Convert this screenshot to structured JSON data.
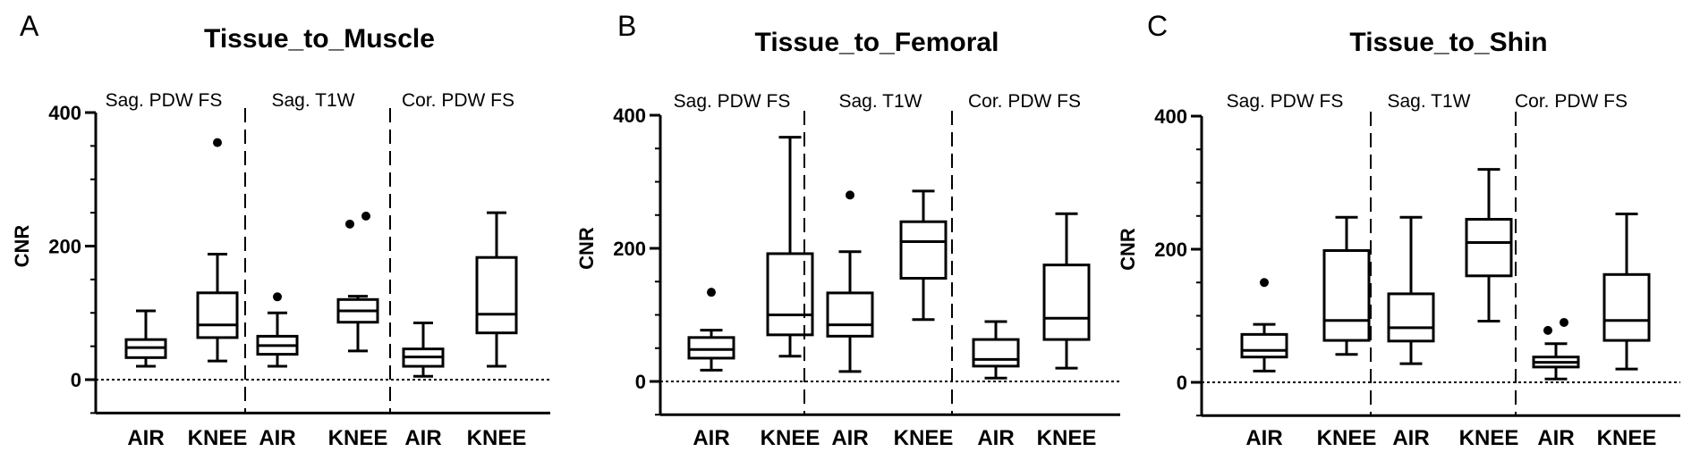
{
  "chart_data": [
    {
      "type": "boxplot",
      "panel": "A",
      "title": "Tissue_to_Muscle",
      "ylabel": "CNR",
      "ylim": [
        -50,
        400
      ],
      "yticks": [
        0,
        200,
        400
      ],
      "groups": [
        "Sag. PDW FS",
        "Sag. T1W",
        "Cor. PDW FS"
      ],
      "categories": [
        "AIR",
        "KNEE"
      ],
      "reference_line": 0,
      "boxes": [
        {
          "group": "Sag. PDW FS",
          "category": "AIR",
          "min": 20,
          "q1": 33,
          "median": 48,
          "q3": 60,
          "max": 103,
          "outliers": []
        },
        {
          "group": "Sag. PDW FS",
          "category": "KNEE",
          "min": 28,
          "q1": 63,
          "median": 82,
          "q3": 130,
          "max": 188,
          "outliers": [
            355
          ]
        },
        {
          "group": "Sag. T1W",
          "category": "AIR",
          "min": 20,
          "q1": 38,
          "median": 51,
          "q3": 65,
          "max": 100,
          "outliers": [
            124
          ]
        },
        {
          "group": "Sag. T1W",
          "category": "KNEE",
          "min": 43,
          "q1": 86,
          "median": 103,
          "q3": 120,
          "max": 125,
          "outliers": [
            233,
            245
          ]
        },
        {
          "group": "Cor. PDW FS",
          "category": "AIR",
          "min": 5,
          "q1": 20,
          "median": 34,
          "q3": 46,
          "max": 85,
          "outliers": []
        },
        {
          "group": "Cor. PDW FS",
          "category": "KNEE",
          "min": 20,
          "q1": 70,
          "median": 98,
          "q3": 183,
          "max": 250,
          "outliers": []
        }
      ]
    },
    {
      "type": "boxplot",
      "panel": "B",
      "title": "Tissue_to_Femoral",
      "ylabel": "CNR",
      "ylim": [
        -50,
        400
      ],
      "yticks": [
        0,
        200,
        400
      ],
      "groups": [
        "Sag. PDW FS",
        "Sag. T1W",
        "Cor. PDW FS"
      ],
      "categories": [
        "AIR",
        "KNEE"
      ],
      "reference_line": 0,
      "boxes": [
        {
          "group": "Sag. PDW FS",
          "category": "AIR",
          "min": 17,
          "q1": 35,
          "median": 48,
          "q3": 66,
          "max": 77,
          "outliers": [
            134
          ]
        },
        {
          "group": "Sag. PDW FS",
          "category": "KNEE",
          "min": 38,
          "q1": 70,
          "median": 100,
          "q3": 192,
          "max": 367,
          "outliers": []
        },
        {
          "group": "Sag. T1W",
          "category": "AIR",
          "min": 15,
          "q1": 68,
          "median": 85,
          "q3": 133,
          "max": 195,
          "outliers": [
            280
          ]
        },
        {
          "group": "Sag. T1W",
          "category": "KNEE",
          "min": 93,
          "q1": 155,
          "median": 210,
          "q3": 240,
          "max": 286,
          "outliers": []
        },
        {
          "group": "Cor. PDW FS",
          "category": "AIR",
          "min": 5,
          "q1": 23,
          "median": 33,
          "q3": 63,
          "max": 90,
          "outliers": []
        },
        {
          "group": "Cor. PDW FS",
          "category": "KNEE",
          "min": 20,
          "q1": 63,
          "median": 95,
          "q3": 175,
          "max": 252,
          "outliers": []
        }
      ]
    },
    {
      "type": "boxplot",
      "panel": "C",
      "title": "Tissue_to_Shin",
      "ylabel": "CNR",
      "ylim": [
        -50,
        400
      ],
      "yticks": [
        0,
        200,
        400
      ],
      "groups": [
        "Sag. PDW FS",
        "Sag. T1W",
        "Cor. PDW FS"
      ],
      "categories": [
        "AIR",
        "KNEE"
      ],
      "reference_line": 0,
      "boxes": [
        {
          "group": "Sag. PDW FS",
          "category": "AIR",
          "min": 17,
          "q1": 38,
          "median": 48,
          "q3": 72,
          "max": 87,
          "outliers": [
            150
          ]
        },
        {
          "group": "Sag. PDW FS",
          "category": "KNEE",
          "min": 42,
          "q1": 63,
          "median": 93,
          "q3": 198,
          "max": 248,
          "outliers": []
        },
        {
          "group": "Sag. T1W",
          "category": "AIR",
          "min": 28,
          "q1": 62,
          "median": 82,
          "q3": 133,
          "max": 248,
          "outliers": []
        },
        {
          "group": "Sag. T1W",
          "category": "KNEE",
          "min": 92,
          "q1": 160,
          "median": 210,
          "q3": 245,
          "max": 320,
          "outliers": []
        },
        {
          "group": "Cor. PDW FS",
          "category": "AIR",
          "min": 5,
          "q1": 23,
          "median": 30,
          "q3": 38,
          "max": 58,
          "outliers": [
            78,
            90
          ]
        },
        {
          "group": "Cor. PDW FS",
          "category": "KNEE",
          "min": 20,
          "q1": 63,
          "median": 93,
          "q3": 162,
          "max": 253,
          "outliers": []
        }
      ]
    }
  ]
}
